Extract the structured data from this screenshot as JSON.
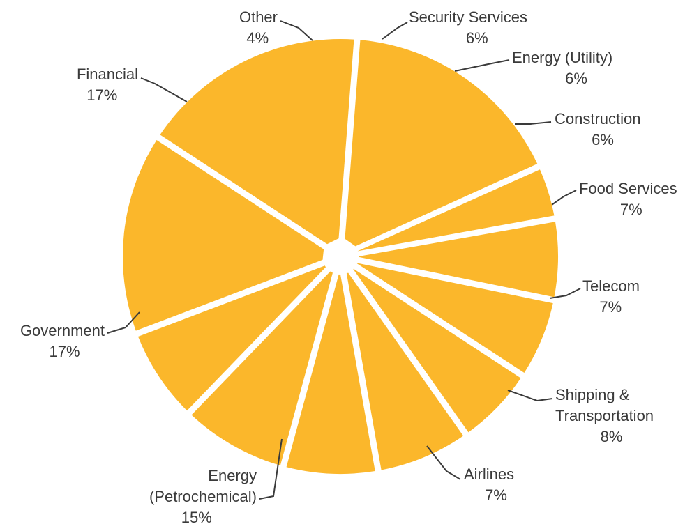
{
  "chart_data": {
    "type": "pie",
    "title": "",
    "start_angle_deg": -10,
    "direction": "clockwise",
    "slice_color": "#FBB72B",
    "label_color": "#3a3a3a",
    "slices": [
      {
        "label": [
          "Security Services"
        ],
        "value": 6,
        "pct_label": "6%"
      },
      {
        "label": [
          "Energy (Utility)"
        ],
        "value": 6,
        "pct_label": "6%"
      },
      {
        "label": [
          "Construction"
        ],
        "value": 6,
        "pct_label": "6%"
      },
      {
        "label": [
          "Food Services"
        ],
        "value": 7,
        "pct_label": "7%"
      },
      {
        "label": [
          "Telecom"
        ],
        "value": 7,
        "pct_label": "7%"
      },
      {
        "label": [
          "Shipping &",
          "Transportation"
        ],
        "value": 8,
        "pct_label": "8%"
      },
      {
        "label": [
          "Airlines"
        ],
        "value": 7,
        "pct_label": "7%"
      },
      {
        "label": [
          "Energy",
          "(Petrochemical)"
        ],
        "value": 15,
        "pct_label": "15%"
      },
      {
        "label": [
          "Government"
        ],
        "value": 17,
        "pct_label": "17%"
      },
      {
        "label": [
          "Financial"
        ],
        "value": 17,
        "pct_label": "17%"
      },
      {
        "label": [
          "Other"
        ],
        "value": 4,
        "pct_label": "4%"
      }
    ]
  }
}
